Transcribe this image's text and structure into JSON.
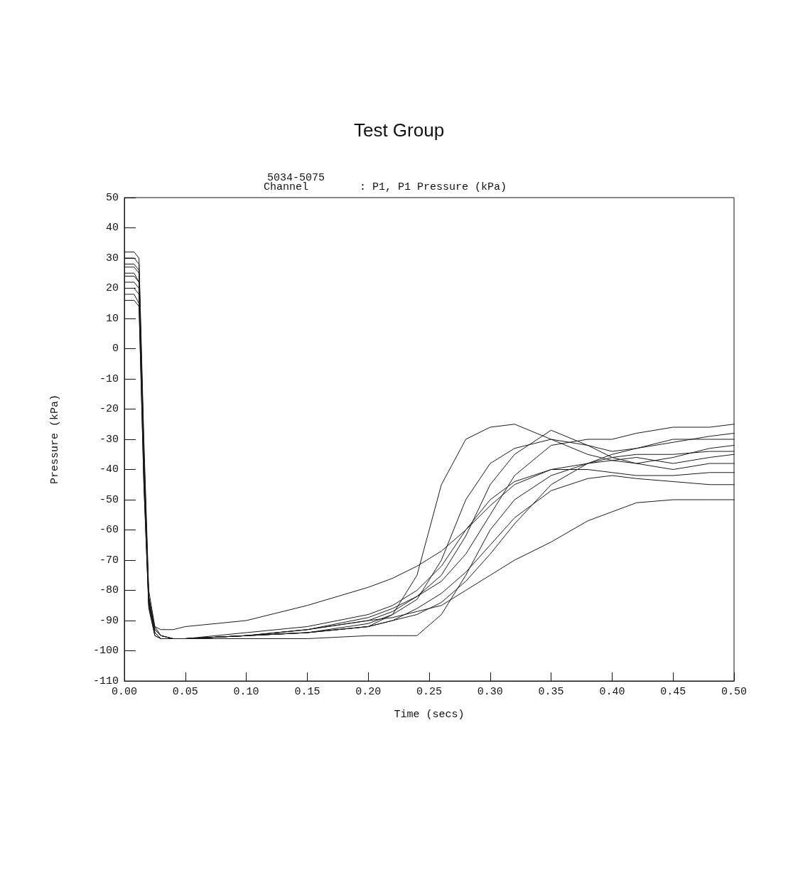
{
  "chart_data": {
    "type": "line",
    "title": "Test Group",
    "subtitle": "5034-5075",
    "annotations": [
      "Channel        : P1, P1 Pressure (kPa)"
    ],
    "xlabel": "Time (secs)",
    "ylabel": "Pressure (kPa)",
    "xlim": [
      0,
      0.5
    ],
    "xticks": [
      {
        "value": 0,
        "label": "0.00"
      },
      {
        "value": 0.05,
        "label": "0.05"
      },
      {
        "value": 0.1,
        "label": "0.10"
      },
      {
        "value": 0.15,
        "label": "0.15"
      },
      {
        "value": 0.2,
        "label": "0.20"
      },
      {
        "value": 0.25,
        "label": "0.25"
      },
      {
        "value": 0.3,
        "label": "0.30"
      },
      {
        "value": 0.35,
        "label": "0.35"
      },
      {
        "value": 0.4,
        "label": "0.40"
      },
      {
        "value": 0.45,
        "label": "0.45"
      },
      {
        "value": 0.5,
        "label": "0.50"
      }
    ],
    "ylim": [
      -110,
      50
    ],
    "yticks": [
      -110,
      -100,
      -90,
      -80,
      -70,
      -60,
      -50,
      -40,
      -30,
      -20,
      -10,
      0,
      10,
      20,
      30,
      40,
      50
    ],
    "grid": false,
    "marker": "none",
    "line_style": "solid",
    "x": [
      0,
      0.008,
      0.012,
      0.016,
      0.02,
      0.025,
      0.03,
      0.04,
      0.05,
      0.1,
      0.15,
      0.2,
      0.22,
      0.24,
      0.26,
      0.28,
      0.3,
      0.32,
      0.35,
      0.38,
      0.4,
      0.42,
      0.45,
      0.48,
      0.5
    ],
    "series": [
      {
        "color": "#1a1a1a",
        "values": [
          32,
          32,
          30,
          -30,
          -80,
          -92,
          -95,
          -96,
          -96,
          -95,
          -94,
          -92,
          -88,
          -75,
          -45,
          -30,
          -26,
          -25,
          -30,
          -35,
          -37,
          -38,
          -40,
          -38,
          -38
        ]
      },
      {
        "color": "#1a1a1a",
        "values": [
          25,
          25,
          22,
          -40,
          -82,
          -93,
          -95,
          -96,
          -96,
          -96,
          -96,
          -95,
          -95,
          -95,
          -88,
          -75,
          -60,
          -50,
          -42,
          -38,
          -36,
          -35,
          -35,
          -34,
          -34
        ]
      },
      {
        "color": "#1a1a1a",
        "values": [
          18,
          18,
          15,
          -45,
          -85,
          -94,
          -96,
          -96,
          -96,
          -95,
          -93,
          -90,
          -89,
          -87,
          -85,
          -80,
          -75,
          -70,
          -64,
          -57,
          -54,
          -51,
          -50,
          -50,
          -50
        ]
      },
      {
        "color": "#1a1a1a",
        "values": [
          28,
          28,
          26,
          -35,
          -83,
          -92,
          -93,
          -93,
          -92,
          -90,
          -85,
          -79,
          -76,
          -72,
          -67,
          -60,
          -52,
          -45,
          -40,
          -38,
          -37,
          -36,
          -38,
          -36,
          -35
        ]
      },
      {
        "color": "#1a1a1a",
        "values": [
          22,
          22,
          20,
          -38,
          -84,
          -94,
          -96,
          -96,
          -96,
          -95,
          -94,
          -91,
          -88,
          -83,
          -70,
          -50,
          -38,
          -33,
          -30,
          -32,
          -34,
          -33,
          -30,
          -30,
          -30
        ]
      },
      {
        "color": "#1a1a1a",
        "values": [
          30,
          30,
          28,
          -33,
          -82,
          -93,
          -95,
          -96,
          -96,
          -95,
          -93,
          -89,
          -86,
          -82,
          -77,
          -68,
          -55,
          -42,
          -32,
          -30,
          -30,
          -28,
          -26,
          -26,
          -25
        ]
      },
      {
        "color": "#1a1a1a",
        "values": [
          20,
          20,
          18,
          -42,
          -85,
          -95,
          -96,
          -96,
          -96,
          -95,
          -94,
          -92,
          -90,
          -86,
          -81,
          -74,
          -65,
          -56,
          -47,
          -43,
          -42,
          -43,
          -44,
          -45,
          -45
        ]
      },
      {
        "color": "#1a1a1a",
        "values": [
          24,
          24,
          22,
          -40,
          -84,
          -94,
          -96,
          -96,
          -96,
          -95,
          -93,
          -90,
          -87,
          -82,
          -75,
          -62,
          -45,
          -35,
          -27,
          -32,
          -36,
          -38,
          -36,
          -33,
          -32
        ]
      },
      {
        "color": "#1a1a1a",
        "values": [
          27,
          27,
          25,
          -36,
          -83,
          -93,
          -95,
          -96,
          -96,
          -94,
          -92,
          -88,
          -85,
          -80,
          -72,
          -60,
          -50,
          -44,
          -40,
          -40,
          -41,
          -42,
          -42,
          -41,
          -41
        ]
      },
      {
        "color": "#1a1a1a",
        "values": [
          16,
          16,
          14,
          -45,
          -86,
          -95,
          -96,
          -96,
          -96,
          -95,
          -94,
          -92,
          -90,
          -88,
          -84,
          -77,
          -68,
          -58,
          -45,
          -38,
          -35,
          -33,
          -31,
          -29,
          -28
        ]
      }
    ]
  }
}
